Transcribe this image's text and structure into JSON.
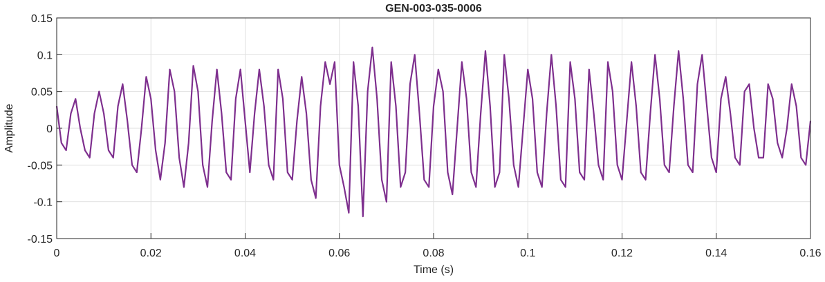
{
  "chart_data": {
    "type": "line",
    "title": "GEN-003-035-0006",
    "xlabel": "Time (s)",
    "ylabel": "Amplitude",
    "x": [
      0,
      0.001,
      0.002,
      0.003,
      0.004,
      0.005,
      0.006,
      0.007,
      0.008,
      0.009,
      0.01,
      0.011,
      0.012,
      0.013,
      0.014,
      0.015,
      0.016,
      0.017,
      0.018,
      0.019,
      0.02,
      0.021,
      0.022,
      0.023,
      0.024,
      0.025,
      0.026,
      0.027,
      0.028,
      0.029,
      0.03,
      0.031,
      0.032,
      0.033,
      0.034,
      0.035,
      0.036,
      0.037,
      0.038,
      0.039,
      0.04,
      0.041,
      0.042,
      0.043,
      0.044,
      0.045,
      0.046,
      0.047,
      0.048,
      0.049,
      0.05,
      0.051,
      0.052,
      0.053,
      0.054,
      0.055,
      0.056,
      0.057,
      0.058,
      0.059,
      0.06,
      0.061,
      0.062,
      0.063,
      0.064,
      0.065,
      0.066,
      0.067,
      0.068,
      0.069,
      0.07,
      0.071,
      0.072,
      0.073,
      0.074,
      0.075,
      0.076,
      0.077,
      0.078,
      0.079,
      0.08,
      0.081,
      0.082,
      0.083,
      0.084,
      0.085,
      0.086,
      0.087,
      0.088,
      0.089,
      0.09,
      0.091,
      0.092,
      0.093,
      0.094,
      0.095,
      0.096,
      0.097,
      0.098,
      0.099,
      0.1,
      0.101,
      0.102,
      0.103,
      0.104,
      0.105,
      0.106,
      0.107,
      0.108,
      0.109,
      0.11,
      0.111,
      0.112,
      0.113,
      0.114,
      0.115,
      0.116,
      0.117,
      0.118,
      0.119,
      0.12,
      0.121,
      0.122,
      0.123,
      0.124,
      0.125,
      0.126,
      0.127,
      0.128,
      0.129,
      0.13,
      0.131,
      0.132,
      0.133,
      0.134,
      0.135,
      0.136,
      0.137,
      0.138,
      0.139,
      0.14,
      0.141,
      0.142,
      0.143,
      0.144,
      0.145,
      0.146,
      0.147,
      0.148,
      0.149,
      0.15,
      0.151,
      0.152,
      0.153,
      0.154,
      0.155,
      0.156,
      0.157,
      0.158,
      0.159,
      0.16
    ],
    "series": [
      {
        "name": "Amplitude",
        "color": "#7e2f8e",
        "values": [
          0.03,
          -0.02,
          -0.03,
          0.02,
          0.04,
          0.0,
          -0.03,
          -0.04,
          0.02,
          0.05,
          0.02,
          -0.03,
          -0.04,
          0.03,
          0.06,
          0.01,
          -0.05,
          -0.06,
          0.0,
          0.07,
          0.04,
          -0.03,
          -0.07,
          -0.02,
          0.08,
          0.05,
          -0.04,
          -0.08,
          -0.02,
          0.085,
          0.05,
          -0.05,
          -0.08,
          0.01,
          0.08,
          0.02,
          -0.06,
          -0.07,
          0.04,
          0.08,
          0.01,
          -0.06,
          0.02,
          0.08,
          0.03,
          -0.05,
          -0.07,
          0.08,
          0.04,
          -0.06,
          -0.07,
          0.01,
          0.07,
          0.02,
          -0.07,
          -0.095,
          0.03,
          0.09,
          0.06,
          0.09,
          -0.05,
          -0.08,
          -0.115,
          0.09,
          0.03,
          -0.12,
          0.05,
          0.11,
          0.04,
          -0.07,
          -0.1,
          0.09,
          0.03,
          -0.08,
          -0.06,
          0.06,
          0.1,
          0.02,
          -0.07,
          -0.08,
          0.03,
          0.08,
          0.05,
          -0.06,
          -0.09,
          0.0,
          0.09,
          0.04,
          -0.06,
          -0.08,
          0.02,
          0.105,
          0.03,
          -0.08,
          -0.06,
          0.1,
          0.04,
          -0.05,
          -0.08,
          0.0,
          0.08,
          0.04,
          -0.06,
          -0.08,
          0.02,
          0.1,
          0.03,
          -0.07,
          -0.08,
          0.09,
          0.04,
          -0.06,
          -0.07,
          0.08,
          0.02,
          -0.05,
          -0.07,
          0.09,
          0.05,
          -0.05,
          -0.07,
          0.01,
          0.09,
          0.03,
          -0.06,
          -0.07,
          0.02,
          0.1,
          0.04,
          -0.05,
          -0.06,
          0.03,
          0.105,
          0.04,
          -0.05,
          -0.06,
          0.06,
          0.1,
          0.03,
          -0.04,
          -0.06,
          0.04,
          0.07,
          0.02,
          -0.04,
          -0.05,
          0.05,
          0.06,
          0.0,
          -0.04,
          -0.04,
          0.06,
          0.04,
          -0.02,
          -0.04,
          0.0,
          0.06,
          0.03,
          -0.04,
          -0.05,
          0.01
        ]
      }
    ],
    "xlim": [
      0,
      0.16
    ],
    "xticks": [
      0,
      0.02,
      0.04,
      0.06,
      0.08,
      0.1,
      0.12,
      0.14,
      0.16
    ],
    "ylim": [
      -0.15,
      0.15
    ],
    "yticks": [
      -0.15,
      -0.1,
      -0.05,
      0,
      0.05,
      0.1,
      0.15
    ],
    "grid": true
  }
}
